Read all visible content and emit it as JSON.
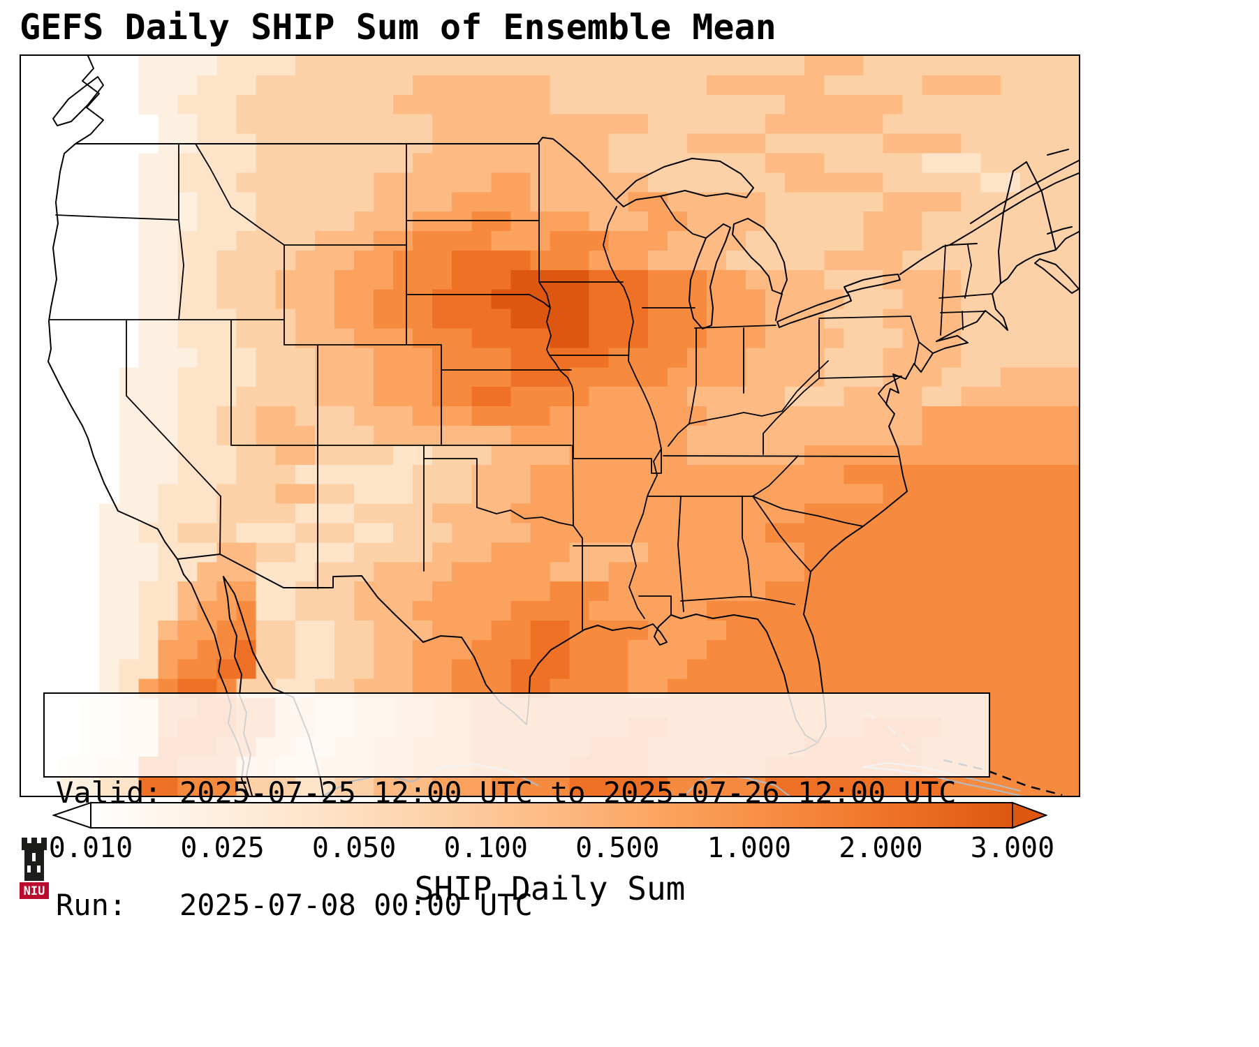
{
  "title": "GEFS Daily SHIP Sum of Ensemble Mean",
  "info_box": {
    "line1": "Valid: 2025-07-25 12:00 UTC to 2025-07-26 12:00 UTC",
    "line2": "Run:   2025-07-08 00:00 UTC"
  },
  "colorbar": {
    "label": "SHIP Daily Sum",
    "ticks": [
      "0.010",
      "0.025",
      "0.050",
      "0.100",
      "0.500",
      "1.000",
      "2.000",
      "3.000"
    ],
    "extend": "both"
  },
  "logo": {
    "text": "NIU",
    "red": "#ba0c2f",
    "dark": "#1d1d1b"
  },
  "chart_data": {
    "type": "heatmap",
    "title": "GEFS Daily SHIP Sum of Ensemble Mean",
    "field_label": "SHIP Daily Sum",
    "valid": "2025-07-25 12:00 UTC to 2025-07-26 12:00 UTC",
    "run": "2025-07-08 00:00 UTC",
    "levels": [
      0.01,
      0.025,
      0.05,
      0.1,
      0.5,
      1.0,
      2.0,
      3.0
    ],
    "colormap": [
      "#ffffff",
      "#fef0e1",
      "#fde3c8",
      "#fdd1a7",
      "#fdba83",
      "#fba35e",
      "#f68b40",
      "#ee7125",
      "#dd5711"
    ],
    "legend": "grid digits 0-8 index into colormap; 0 = below 0.010 (white), 8 = near/above 3.000 (dark orange); rows run north to south over CONUS",
    "grid": [
      "000000111122223333333333333333333333333344433333333333",
      "000000111222333333334444444333333334444443333344443333",
      "000000112223333333344444444333333333333444444333333333",
      "000000011223333333333444444444443333334444443333333333",
      "000000011222333333333444444444333344443333334444333333",
      "000000112222333333334444444444333333334443333322233333",
      "000000112223333333444444554444443333333444443333322333",
      "000000111222333333444455554444455444443333334444333333",
      "000000111222333334445556655554445544443333344433333333",
      "000000112223333444556666555666555444433333344433333333",
      "000000112233334445566677776665554444333334444333333333",
      "000000112233344455566677788887776665544443334444333333",
      "000000112233344455666777888887776665554444333444333333",
      "000000112223334455666777788887776665554443334444333333",
      "000000112223334445556667777887776665554444333444333333",
      "000000111222333444555666677777666655544443334444333333",
      "000001112222333444555666677766666555544443334443334444",
      "000001112223333444555667766665555544444333444433444444",
      "000001112233443334445556666555555554444444444455555555",
      "000001112233444333444444455555555544444444444455555555",
      "000001112223344333322333444455555544444455555555555555",
      "000001112223332222223334445555555555555555666666666666",
      "000001122233344332223334445555555555555555556666666666",
      "000011122233332223333444455555555555555566666666666666",
      "000011223332223332233344445555555555556666666666666666",
      "000011122244332223333444555544445555555566666666666666",
      "000011122444222333444455555444555555555566666666666666",
      "000011224455223334444555555666555555556666666666666666",
      "000011224556223334445555566665555556666666666666666666",
      "000011245566332233444555667766665555666666666666666666",
      "000011255667332233445556667766655556666666666666666666",
      "000012256677332233445566677766655566666666666666666666",
      "000012567763322334445566677666655666666666666666666666",
      "000112266776633223344556666666666666666666666666666666",
      "000112267776633223344556666666677666666666677776666666",
      "000112277766332233445556666667776666666677777766666666",
      "001122776663322333445556666677776666667777777766666666",
      "001122776663332233444555666677777666667777777776666666"
    ]
  }
}
